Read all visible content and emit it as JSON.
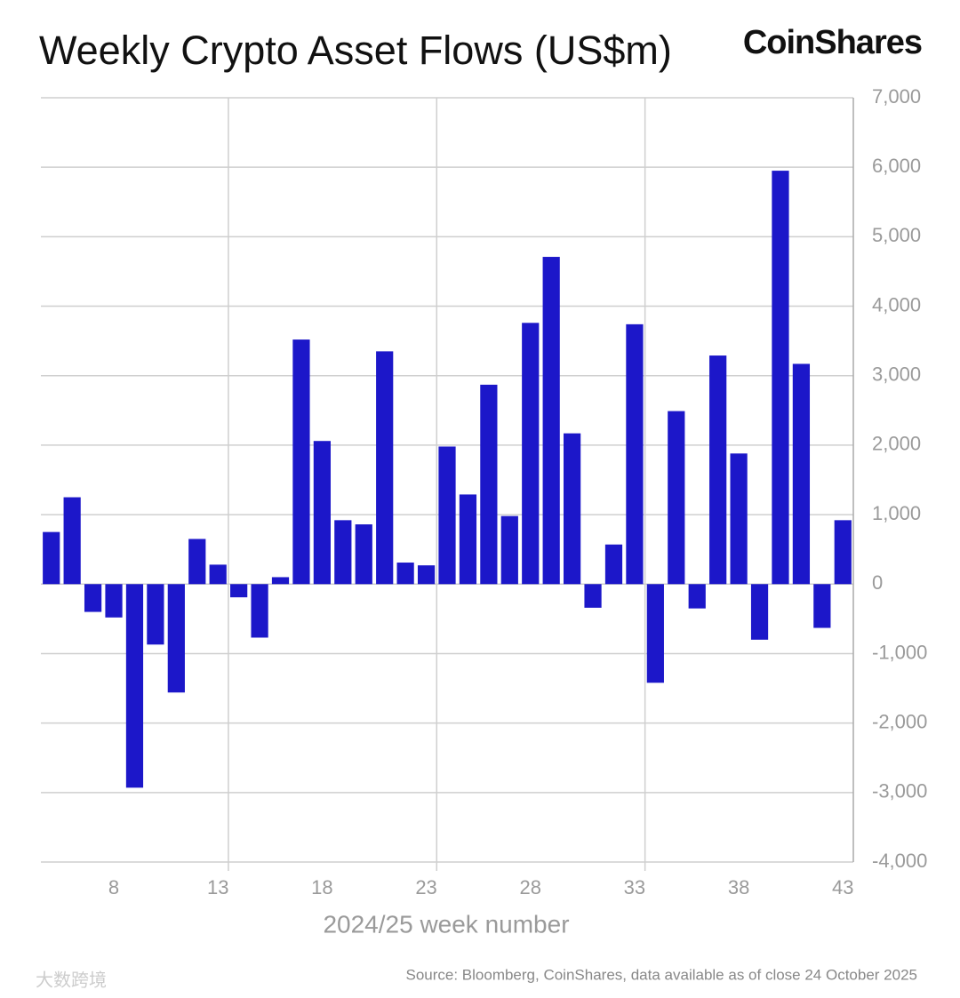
{
  "chart_data": {
    "type": "bar",
    "title": "Weekly Crypto Asset Flows (US$m)",
    "logo": "CoinShares",
    "x_label": "2024/25 week number",
    "source": "Source: Bloomberg, CoinShares, data available as of close 24 October 2025",
    "watermark": "大数跨境",
    "x": [
      5,
      6,
      7,
      8,
      9,
      10,
      11,
      12,
      13,
      14,
      15,
      16,
      17,
      18,
      19,
      20,
      21,
      22,
      23,
      24,
      25,
      26,
      27,
      28,
      29,
      30,
      31,
      32,
      33,
      34,
      35,
      36,
      37,
      38,
      39,
      40,
      41,
      42,
      43
    ],
    "values": [
      750,
      1250,
      -400,
      -480,
      -2930,
      -870,
      -1560,
      650,
      280,
      -190,
      -770,
      100,
      3520,
      2060,
      920,
      860,
      3350,
      310,
      270,
      1980,
      1290,
      2870,
      980,
      3760,
      4710,
      2170,
      -340,
      570,
      3740,
      -1420,
      2490,
      -350,
      3290,
      1880,
      -800,
      5950,
      3170,
      -630,
      920
    ],
    "color": "#1c17c9",
    "xlim": [
      4.5,
      43.5
    ],
    "xticks": [
      8,
      13,
      18,
      23,
      28,
      33,
      38,
      43
    ],
    "x_gridlines": [
      13.5,
      23.5,
      33.5
    ],
    "ylim": [
      -4000,
      7000
    ],
    "yticks": [
      {
        "value": -4000,
        "label": "-4,000"
      },
      {
        "value": -3000,
        "label": "-3,000"
      },
      {
        "value": -2000,
        "label": "-2,000"
      },
      {
        "value": -1000,
        "label": "-1,000"
      },
      0,
      {
        "value": 1000,
        "label": "1,000"
      },
      {
        "value": 2000,
        "label": "2,000"
      },
      {
        "value": 3000,
        "label": "3,000"
      },
      {
        "value": 4000,
        "label": "4,000"
      },
      {
        "value": 5000,
        "label": "5,000"
      },
      {
        "value": 6000,
        "label": "6,000"
      },
      {
        "value": 7000,
        "label": "7,000"
      }
    ],
    "grid": true
  }
}
